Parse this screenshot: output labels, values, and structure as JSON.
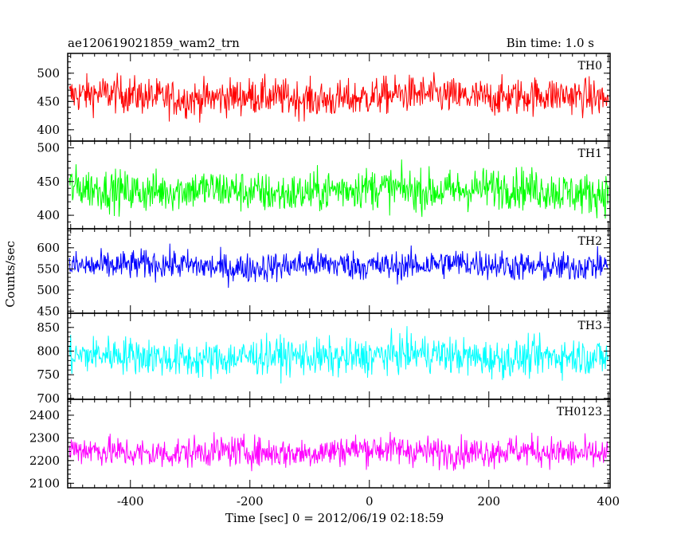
{
  "header": {
    "title": "ae120619021859_wam2_trn",
    "bin_time": "Bin time: 1.0 s"
  },
  "axes": {
    "ylabel": "Counts/sec",
    "xlabel": "Time [sec] 0 = 2012/06/19 02:18:59"
  },
  "chart_data": {
    "type": "line",
    "title": "ae120619021859_wam2_trn",
    "subtitle": "Bin time: 1.0 s",
    "xlabel": "Time [sec] 0 = 2012/06/19 02:18:59",
    "ylabel": "Counts/sec",
    "xlim": [
      -505,
      403
    ],
    "x_ticks": [
      -400,
      -200,
      0,
      200,
      400
    ],
    "x_range_data": [
      -502,
      400
    ],
    "x_step": 1,
    "grid": false,
    "panels": [
      {
        "name": "TH0",
        "color": "#ff0000",
        "ylim": [
          380,
          535
        ],
        "ticks": [
          400,
          450,
          500
        ],
        "mean": 458,
        "noise": 30
      },
      {
        "name": "TH1",
        "color": "#00ff00",
        "ylim": [
          380,
          510
        ],
        "ticks": [
          400,
          450,
          500
        ],
        "mean": 437,
        "noise": 28
      },
      {
        "name": "TH2",
        "color": "#0000ff",
        "ylim": [
          445,
          645
        ],
        "ticks": [
          450,
          500,
          550,
          600
        ],
        "mean": 558,
        "noise": 32
      },
      {
        "name": "TH3",
        "color": "#00ffff",
        "ylim": [
          698,
          880
        ],
        "ticks": [
          700,
          750,
          800,
          850
        ],
        "mean": 788,
        "noise": 36
      },
      {
        "name": "TH0123",
        "color": "#ff00ff",
        "ylim": [
          2080,
          2470
        ],
        "ticks": [
          2100,
          2200,
          2300,
          2400
        ],
        "mean": 2240,
        "noise": 62
      }
    ]
  }
}
